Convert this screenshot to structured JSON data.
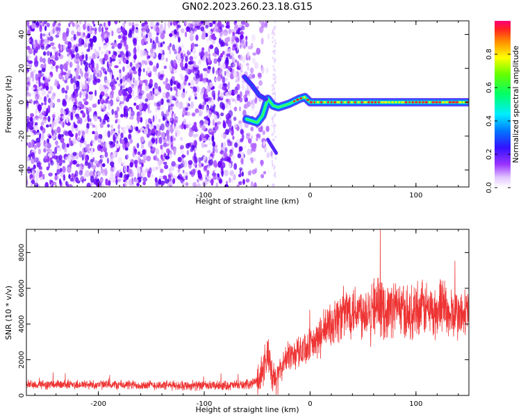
{
  "figure": {
    "title": "GN02.2023.260.23.18.G15"
  },
  "colors": {
    "snr_line": "#ee3333",
    "spectrogram_background": "#cc66ff",
    "ridge_peak": "#ff2222"
  },
  "chart_data": [
    {
      "type": "heatmap",
      "xlabel": "Height of straight line (km)",
      "ylabel": "Frequency (Hz)",
      "xlim": [
        -268,
        150
      ],
      "ylim": [
        -50,
        48
      ],
      "x_ticks": [
        -200,
        -100,
        0,
        100
      ],
      "y_ticks": [
        -40,
        -20,
        0,
        20,
        40
      ],
      "colorbar": {
        "label": "Normalized spectral amplitude",
        "range": [
          0.0,
          1.0
        ],
        "ticks": [
          0.0,
          0.2,
          0.4,
          0.6,
          0.8
        ],
        "tick_labels": [
          "0.0",
          "0.2",
          "0.4",
          "0.6",
          "0.8"
        ],
        "colormap": "rainbow (violet → blue → cyan → green → yellow → red)"
      },
      "features": {
        "noise_region_x": [
          -268,
          -40
        ],
        "ridge": {
          "x": [
            -60,
            -50,
            -45,
            -40,
            -35,
            -30,
            -20,
            -10,
            -5,
            0,
            50,
            100,
            150
          ],
          "frequency": [
            -10,
            -12,
            -8,
            2,
            -2,
            -3,
            -1,
            2,
            3,
            0,
            0,
            0,
            0
          ]
        },
        "upper_branch": {
          "x": [
            -62,
            -55,
            -48,
            -42
          ],
          "frequency": [
            15,
            10,
            4,
            2
          ]
        },
        "gap_x": [
          -36,
          -30
        ]
      }
    },
    {
      "type": "line",
      "xlabel": "Height of straight line (km)",
      "ylabel": "SNR (10 * v/v)",
      "xlim": [
        -268,
        150
      ],
      "ylim": [
        0,
        9300
      ],
      "x_ticks": [
        -200,
        -100,
        0,
        100
      ],
      "y_ticks": [
        0,
        2000,
        4000,
        6000,
        8000
      ],
      "series": [
        {
          "x": [
            -268,
            -250,
            -225,
            -200,
            -175,
            -150,
            -125,
            -100,
            -75,
            -60,
            -50,
            -45,
            -40,
            -38,
            -35,
            -30,
            -25,
            -20,
            -15,
            -10,
            -5,
            0,
            5,
            10,
            15,
            20,
            25,
            30,
            35,
            40,
            45,
            50,
            55,
            60,
            65,
            70,
            75,
            80,
            85,
            90,
            95,
            100,
            105,
            110,
            115,
            120,
            125,
            130,
            135,
            140,
            145,
            150
          ],
          "y": [
            620,
            600,
            610,
            600,
            590,
            580,
            560,
            540,
            560,
            600,
            800,
            1400,
            2300,
            1600,
            700,
            1200,
            1800,
            2300,
            2300,
            2500,
            2700,
            2700,
            3000,
            3300,
            3700,
            4000,
            4300,
            4500,
            4700,
            4900,
            4800,
            4700,
            4900,
            5100,
            5000,
            4700,
            4800,
            5000,
            4900,
            4600,
            4500,
            5000,
            4800,
            4900,
            4700,
            4500,
            5600,
            4300,
            4600,
            4500,
            4400,
            4800
          ]
        }
      ]
    }
  ]
}
